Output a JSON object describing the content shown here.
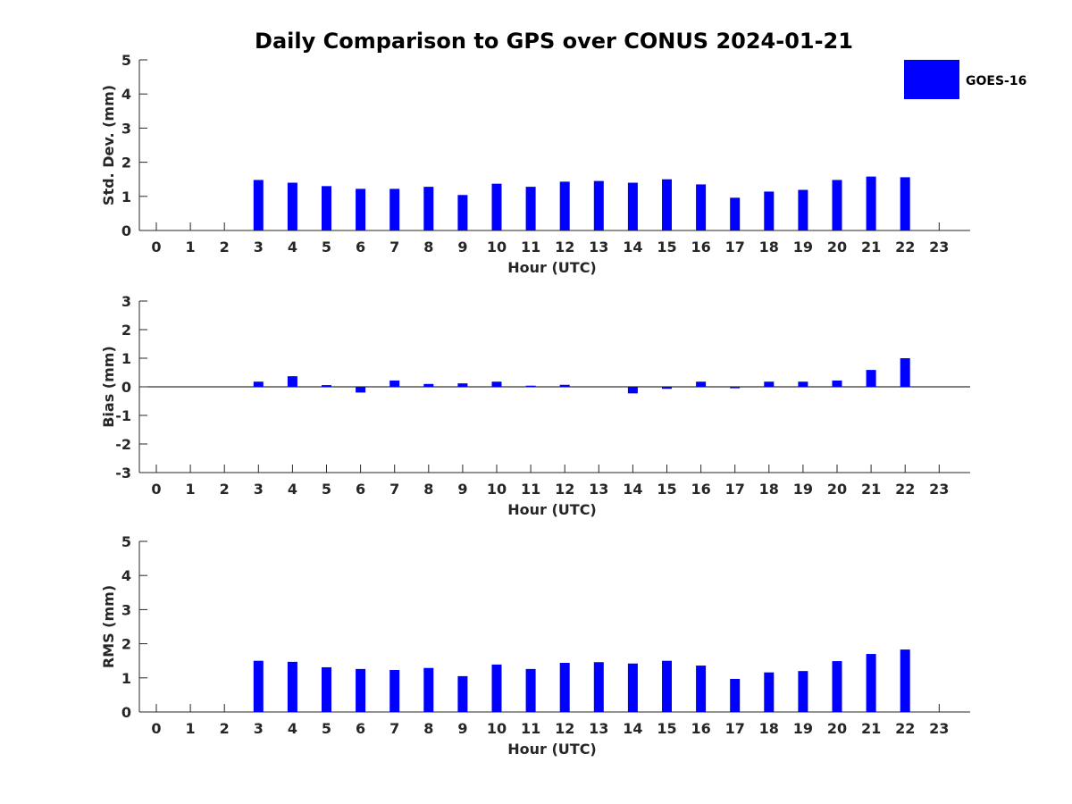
{
  "title": "Daily Comparison to GPS over CONUS 2024-01-21",
  "legend": {
    "label": "GOES-16",
    "color": "#0000ff"
  },
  "chart_data": [
    {
      "type": "bar",
      "name": "std-dev",
      "ylabel": "Std. Dev. (mm)",
      "xlabel": "Hour (UTC)",
      "ylim": [
        0,
        5
      ],
      "yticks": [
        0,
        1,
        2,
        3,
        4,
        5
      ],
      "categories": [
        "0",
        "1",
        "2",
        "3",
        "4",
        "5",
        "6",
        "7",
        "8",
        "9",
        "10",
        "11",
        "12",
        "13",
        "14",
        "15",
        "16",
        "17",
        "18",
        "19",
        "20",
        "21",
        "22",
        "23"
      ],
      "series": [
        {
          "name": "GOES-16",
          "values": [
            null,
            null,
            null,
            1.48,
            1.4,
            1.3,
            1.22,
            1.22,
            1.28,
            1.04,
            1.37,
            1.28,
            1.43,
            1.45,
            1.4,
            1.5,
            1.35,
            0.96,
            1.14,
            1.19,
            1.48,
            1.58,
            1.56,
            null
          ]
        }
      ]
    },
    {
      "type": "bar",
      "name": "bias",
      "ylabel": "Bias (mm)",
      "xlabel": "Hour (UTC)",
      "ylim": [
        -3,
        3
      ],
      "yticks": [
        -3,
        -2,
        -1,
        0,
        1,
        2,
        3
      ],
      "categories": [
        "0",
        "1",
        "2",
        "3",
        "4",
        "5",
        "6",
        "7",
        "8",
        "9",
        "10",
        "11",
        "12",
        "13",
        "14",
        "15",
        "16",
        "17",
        "18",
        "19",
        "20",
        "21",
        "22",
        "23"
      ],
      "series": [
        {
          "name": "GOES-16",
          "values": [
            null,
            null,
            null,
            0.18,
            0.37,
            0.06,
            -0.2,
            0.22,
            0.1,
            0.12,
            0.18,
            0.04,
            0.07,
            0.0,
            -0.23,
            -0.07,
            0.18,
            -0.05,
            0.18,
            0.18,
            0.22,
            0.59,
            1.0,
            null
          ]
        }
      ]
    },
    {
      "type": "bar",
      "name": "rms",
      "ylabel": "RMS (mm)",
      "xlabel": "Hour (UTC)",
      "ylim": [
        0,
        5
      ],
      "yticks": [
        0,
        1,
        2,
        3,
        4,
        5
      ],
      "categories": [
        "0",
        "1",
        "2",
        "3",
        "4",
        "5",
        "6",
        "7",
        "8",
        "9",
        "10",
        "11",
        "12",
        "13",
        "14",
        "15",
        "16",
        "17",
        "18",
        "19",
        "20",
        "21",
        "22",
        "23"
      ],
      "series": [
        {
          "name": "GOES-16",
          "values": [
            null,
            null,
            null,
            1.5,
            1.47,
            1.31,
            1.26,
            1.23,
            1.29,
            1.05,
            1.39,
            1.26,
            1.44,
            1.46,
            1.42,
            1.5,
            1.36,
            0.97,
            1.16,
            1.2,
            1.49,
            1.7,
            1.83,
            null
          ]
        }
      ]
    }
  ]
}
